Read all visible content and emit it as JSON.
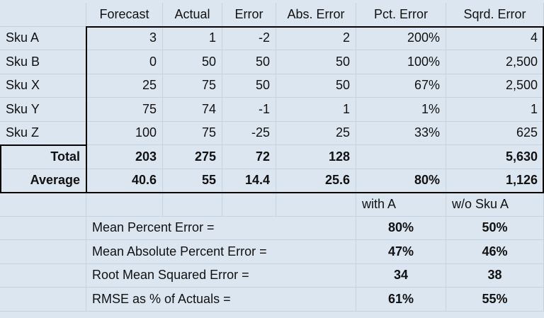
{
  "table": {
    "columns": [
      "Forecast",
      "Actual",
      "Error",
      "Abs. Error",
      "Pct. Error",
      "Sqrd. Error"
    ],
    "rows": [
      [
        "Sku A",
        "3",
        "1",
        "-2",
        "2",
        "200%",
        "4"
      ],
      [
        "Sku B",
        "0",
        "50",
        "50",
        "50",
        "100%",
        "2,500"
      ],
      [
        "Sku X",
        "25",
        "75",
        "50",
        "50",
        "67%",
        "2,500"
      ],
      [
        "Sku Y",
        "75",
        "74",
        "-1",
        "1",
        "1%",
        "1"
      ],
      [
        "Sku Z",
        "100",
        "75",
        "-25",
        "25",
        "33%",
        "625"
      ]
    ],
    "total": {
      "label": "Total",
      "values": [
        "203",
        "275",
        "72",
        "128",
        null,
        "5,630"
      ]
    },
    "average": {
      "label": "Average",
      "values": [
        "40.6",
        "55",
        "14.4",
        "25.6",
        "80%",
        "1,126"
      ]
    },
    "metrics": {
      "columns": [
        "with A",
        "w/o Sku A"
      ],
      "rows": [
        {
          "label": "Mean Percent Error =",
          "values": [
            "80%",
            "50%"
          ]
        },
        {
          "label": "Mean Absolute Percent Error =",
          "values": [
            "47%",
            "46%"
          ]
        },
        {
          "label": "Root Mean Squared Error =",
          "values": [
            "34",
            "38"
          ]
        },
        {
          "label": "RMSE as % of Actuals =",
          "values": [
            "61%",
            "55%"
          ]
        }
      ]
    }
  }
}
